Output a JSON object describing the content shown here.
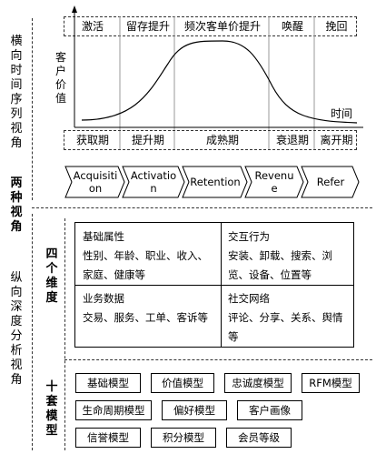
{
  "left_labels": {
    "horizontal_view": "横向时间序列视角",
    "two_views": "两种视角",
    "four_dims": "四个维度",
    "vertical_view": "纵向深度分析视角",
    "ten_models": "十套模型"
  },
  "top_stages": [
    "激活",
    "留存提升",
    "频次客单价提升",
    "唤醒",
    "挽回"
  ],
  "curve_labels": {
    "y": "客户价值",
    "x": "时间"
  },
  "bottom_stages": [
    "获取期",
    "提升期",
    "成熟期",
    "衰退期",
    "离开期"
  ],
  "aarrr": [
    "Acquisition",
    "Activation",
    "Retention",
    "Revenue",
    "Refer"
  ],
  "dimensions": [
    {
      "title": "基础属性",
      "body": "性别、年龄、职业、收入、家庭、健康等"
    },
    {
      "title": "交互行为",
      "body": "安装、卸载、搜索、浏览、设备、位置等"
    },
    {
      "title": "业务数据",
      "body": "交易、服务、工单、客诉等"
    },
    {
      "title": "社交网络",
      "body": "评论、分享、关系、舆情等"
    }
  ],
  "models": [
    [
      "基础模型",
      "价值模型",
      "忠诚度模型",
      "RFM模型"
    ],
    [
      "生命周期模型",
      "偏好模型",
      "客户画像"
    ],
    [
      "信誉模型",
      "积分模型",
      "会员等级"
    ]
  ]
}
